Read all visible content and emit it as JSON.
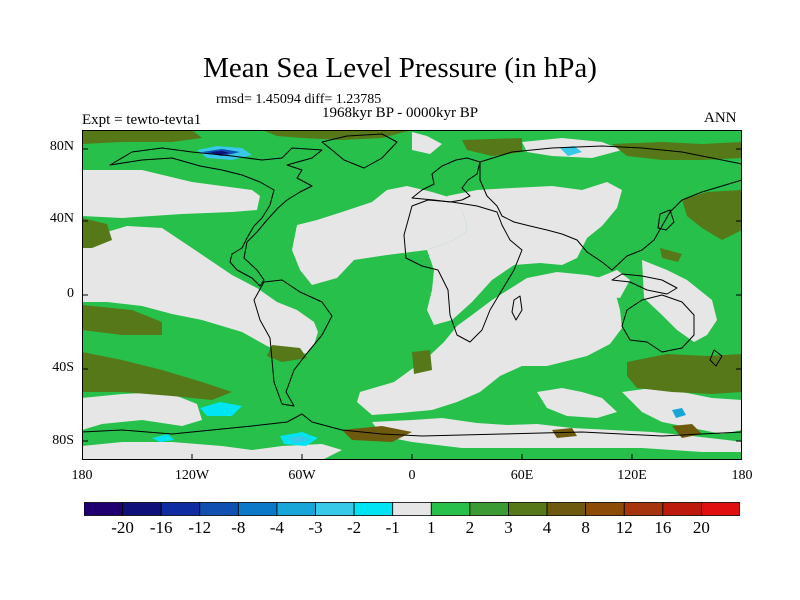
{
  "title": "Mean Sea Level Pressure (in hPa)",
  "stats": "rmsd= 1.45094 diff= 1.23785",
  "subtitle": "1968kyr BP - 0000kyr BP",
  "experiment": "Expt = tewto-tevta1",
  "season": "ANN",
  "y_axis": [
    "80N",
    "40N",
    "0",
    "40S",
    "80S"
  ],
  "x_axis": [
    "180",
    "120W",
    "60W",
    "0",
    "60E",
    "120E",
    "180"
  ],
  "colorbar": {
    "colors": [
      "#200070",
      "#10107a",
      "#0f2ca0",
      "#1050b0",
      "#0c78c8",
      "#18a6d8",
      "#38c8e8",
      "#00e4f4",
      "#e6e6e6",
      "#26c04a",
      "#3c9a34",
      "#567818",
      "#6e5a0e",
      "#8c4c08",
      "#a6340c",
      "#bc1a0c",
      "#e01010"
    ],
    "labels": [
      "-20",
      "-16",
      "-12",
      "-8",
      "-4",
      "-3",
      "-2",
      "-1",
      "1",
      "2",
      "3",
      "4",
      "8",
      "12",
      "16",
      "20"
    ]
  }
}
